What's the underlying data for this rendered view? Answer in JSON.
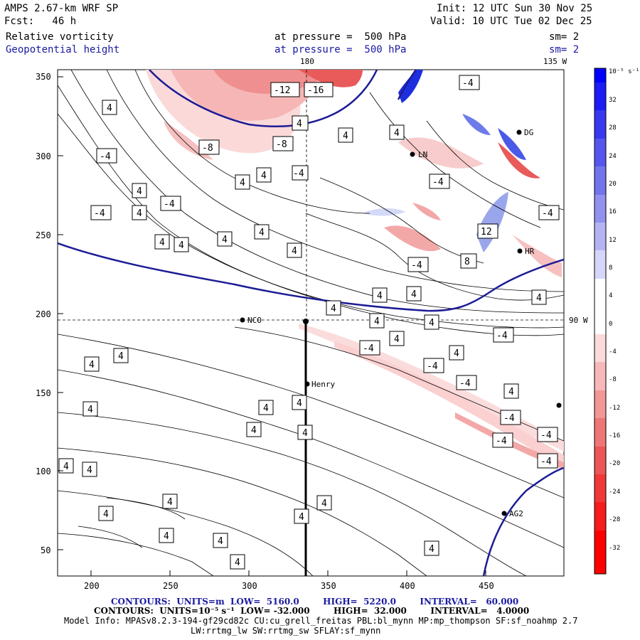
{
  "header": {
    "model": "AMPS 2.67-km WRF SP",
    "forecast": "Fcst:   46 h",
    "init": "Init: 12 UTC Sun 30 Nov 25",
    "valid": "Valid: 10 UTC Tue 02 Dec 25",
    "field1_name": "Relative vorticity",
    "field1_level": "at pressure =  500 hPa",
    "field1_sm": "sm= 2",
    "field2_name": "Geopotential height",
    "field2_level": "at pressure =  500 hPa",
    "field2_sm": "sm= 2"
  },
  "map": {
    "lon_labels": [
      "180",
      "135 W",
      "90 W"
    ],
    "x_ticks": [
      "200",
      "250",
      "300",
      "350",
      "400",
      "450"
    ],
    "y_ticks": [
      "50",
      "100",
      "150",
      "200",
      "250",
      "300",
      "350"
    ],
    "stations": [
      "NCO",
      "Henry",
      "HR",
      "AG2",
      "LN",
      "DG"
    ],
    "contour_labels": [
      "-12",
      "-16",
      "-8",
      "-8",
      "-4",
      "-4",
      "-4",
      "-4",
      "-4",
      "-4",
      "-4",
      "-4",
      "-4",
      "-4",
      "-4",
      "-4",
      "4",
      "8",
      "12"
    ]
  },
  "colorbar": {
    "units": "10⁻⁵ s⁻¹",
    "labels": [
      "32",
      "28",
      "24",
      "20",
      "16",
      "12",
      "8",
      "4",
      "0",
      "-4",
      "-8",
      "-12",
      "-16",
      "-20",
      "-24",
      "-28",
      "-32"
    ]
  },
  "footer": {
    "line1": "CONTOURS:  UNITS=m  LOW=  5160.0        HIGH=  5220.0        INTERVAL=   60.000",
    "line2": "CONTOURS:  UNITS=10⁻⁵ s⁻¹  LOW= -32.000        HIGH=  32.000        INTERVAL=   4.0000",
    "line3": "Model Info: MPASv8.2.3-194-gf29cd82c CU:cu_grell_freitas PBL:bl_mynn MP:mp_thompson SF:sf_noahmp 2.7",
    "line4": "LW:rrtmg_lw SW:rrtmg_sw SFLAY:sf_mynn"
  },
  "colors": {
    "height_contour": "#1c1c96",
    "neg_vort": "#e03030",
    "pos_vort": "#3030e0"
  }
}
